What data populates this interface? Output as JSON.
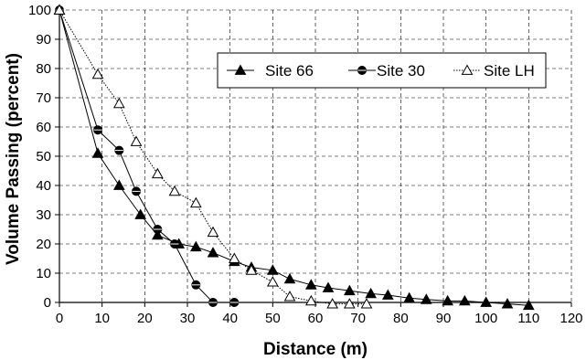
{
  "chart_data": {
    "type": "line",
    "title": "",
    "xlabel": "Distance (m)",
    "ylabel": "Volume Passing (percent)",
    "xlim": [
      0,
      120
    ],
    "ylim": [
      0,
      100
    ],
    "xticks": [
      0,
      10,
      20,
      30,
      40,
      50,
      60,
      70,
      80,
      90,
      100,
      110,
      120
    ],
    "yticks": [
      0,
      10,
      20,
      30,
      40,
      50,
      60,
      70,
      80,
      90,
      100
    ],
    "grid": true,
    "legend_position": "upper-right",
    "series": [
      {
        "name": "Site 66",
        "marker": "filled-triangle",
        "line_style": "solid",
        "x": [
          0,
          9,
          14,
          19,
          23,
          28,
          32,
          36,
          41,
          45,
          50,
          54,
          59,
          63,
          68,
          73,
          77,
          82,
          86,
          91,
          95,
          100,
          105,
          110
        ],
        "y": [
          100,
          51,
          40,
          30,
          23,
          20,
          19,
          17,
          14,
          12,
          11,
          8,
          6,
          5,
          4,
          3,
          2.5,
          1.5,
          1,
          0.5,
          0.5,
          0,
          -0.5,
          -1
        ]
      },
      {
        "name": "Site 30",
        "marker": "filled-circle",
        "line_style": "solid",
        "x": [
          0,
          9,
          14,
          18,
          23,
          27,
          32,
          36,
          41
        ],
        "y": [
          100,
          59,
          52,
          38,
          25,
          20,
          6,
          0,
          0
        ]
      },
      {
        "name": "Site LH",
        "marker": "open-triangle",
        "line_style": "dotted",
        "x": [
          0,
          9,
          14,
          18,
          23,
          27,
          32,
          36,
          41,
          45,
          50,
          54,
          59,
          64,
          68,
          72
        ],
        "y": [
          100,
          78,
          68,
          55,
          44,
          38,
          34,
          24,
          15,
          11,
          7,
          2,
          0.5,
          -0.5,
          -0.5,
          -0.5
        ]
      }
    ]
  }
}
